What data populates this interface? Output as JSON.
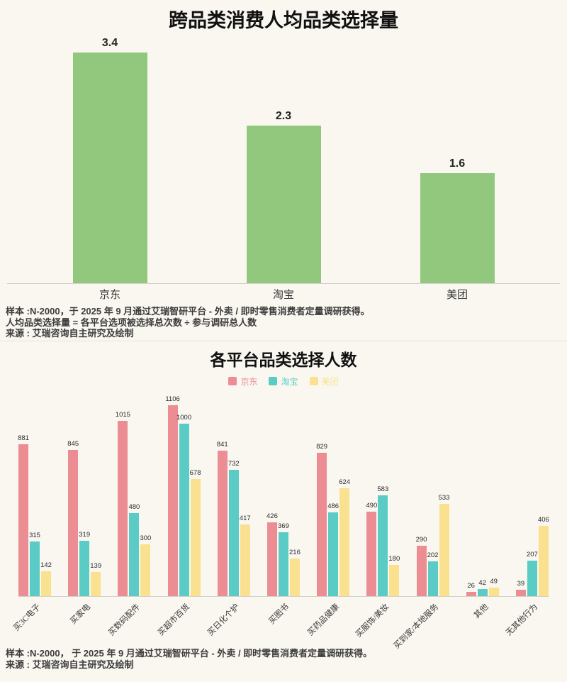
{
  "page": {
    "background": "#f8f5ef",
    "axis_color": "#d4d1c9"
  },
  "chart_data": [
    {
      "type": "bar",
      "title": "跨品类消费人均品类选择量",
      "categories": [
        "京东",
        "淘宝",
        "美团"
      ],
      "values": [
        3.4,
        2.3,
        1.6
      ],
      "bar_color": "#92c87e",
      "xlabel": "",
      "ylabel": "",
      "ylim": [
        0,
        3.6
      ],
      "grid": false,
      "legend_position": "none",
      "footnotes": [
        "样本 :N-2000，于 2025 年 9 月通过艾瑞智研平台 - 外卖 / 即时零售消费者定量调研获得。",
        "人均品类选择量 = 各平台选项被选择总次数 ÷ 参与调研总人数",
        "来源 : 艾瑞咨询自主研究及绘制"
      ]
    },
    {
      "type": "bar",
      "title": "各平台品类选择人数",
      "categories": [
        "买3C电子",
        "买家电",
        "买数码配件",
        "买超市百货",
        "买日化个护",
        "买图书",
        "买药品健康",
        "买服饰/美妆",
        "买到家/本地服务",
        "其他",
        "无其他行为"
      ],
      "series": [
        {
          "name": "京东",
          "color": "#ec8d94",
          "values": [
            881,
            845,
            1015,
            1106,
            841,
            426,
            829,
            490,
            290,
            26,
            39
          ]
        },
        {
          "name": "淘宝",
          "color": "#5accc5",
          "values": [
            315,
            319,
            480,
            1000,
            732,
            369,
            486,
            583,
            202,
            42,
            207
          ]
        },
        {
          "name": "美团",
          "color": "#f9e190",
          "values": [
            142,
            139,
            300,
            678,
            417,
            216,
            624,
            180,
            533,
            49,
            406
          ]
        }
      ],
      "xlabel": "",
      "ylabel": "",
      "ylim": [
        0,
        1150
      ],
      "grid": false,
      "legend_position": "top",
      "footnotes": [
        "样本 :N-2000， 于 2025 年 9 月通过艾瑞智研平台 - 外卖 / 即时零售消费者定量调研获得。",
        "来源 : 艾瑞咨询自主研究及绘制"
      ]
    }
  ]
}
